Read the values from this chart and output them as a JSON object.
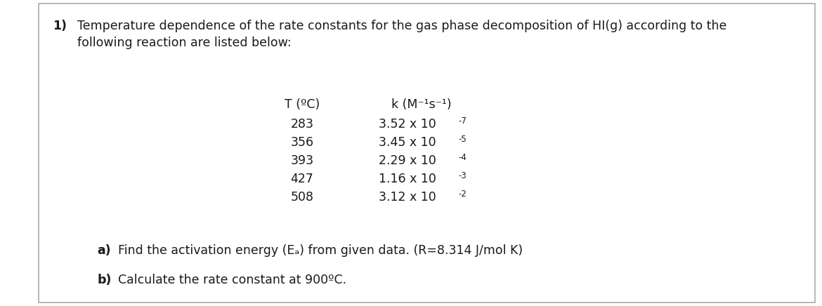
{
  "background_color": "#ffffff",
  "border_color": "#aaaaaa",
  "title_number": "1)",
  "title_line1": "Temperature dependence of the rate constants for the gas phase decomposition of HI(g) according to the",
  "title_line2": "following reaction are listed below:",
  "col1_header": "T (ºC)",
  "col2_header": "k (M⁻¹s⁻¹)",
  "col1_vals": [
    "283",
    "356",
    "393",
    "427",
    "508"
  ],
  "col2_base": [
    "3.52 x 10",
    "3.45 x 10",
    "2.29 x 10",
    "1.16 x 10",
    "3.12 x 10"
  ],
  "col2_exp": [
    "-7",
    "-5",
    "-4",
    "-3",
    "-2"
  ],
  "part_a_bold": "a)",
  "part_a_text": "Find the activation energy (Eₐ) from given data. (R=8.314 J/mol K)",
  "part_b_bold": "b)",
  "part_b_text": "Calculate the rate constant at 900ºC.",
  "font_size_title": 12.5,
  "font_size_table": 12.5,
  "font_size_parts": 12.5,
  "font_size_exp": 8.5,
  "text_color": "#1a1a1a"
}
